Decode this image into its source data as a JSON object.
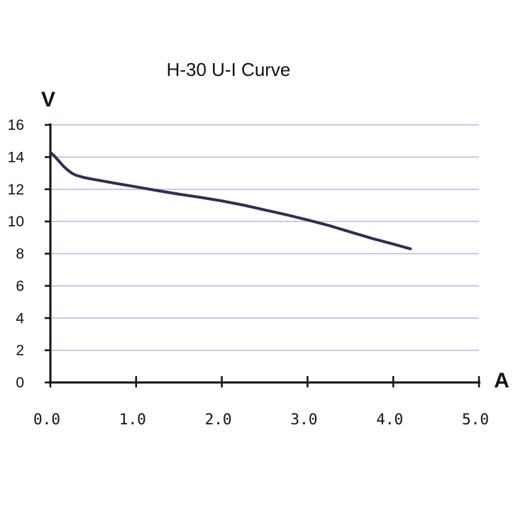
{
  "chart_data": {
    "type": "line",
    "title": "H-30 U-I Curve",
    "xlabel": "A",
    "ylabel": "V",
    "xlim": [
      0,
      5
    ],
    "ylim": [
      0,
      16
    ],
    "x_ticks": [
      "0.0",
      "1.0",
      "2.0",
      "3.0",
      "4.0",
      "5.0"
    ],
    "y_ticks": [
      "0",
      "2",
      "4",
      "6",
      "8",
      "10",
      "12",
      "14",
      "16"
    ],
    "grid": "horizontal",
    "series": [
      {
        "color": "#2e2f55",
        "x": [
          0.0,
          0.05,
          0.1,
          0.15,
          0.2,
          0.25,
          0.3,
          0.4,
          0.5,
          0.75,
          1.0,
          1.25,
          1.5,
          1.75,
          2.0,
          2.25,
          2.5,
          2.75,
          3.0,
          3.25,
          3.5,
          3.75,
          4.0,
          4.2
        ],
        "y": [
          14.3,
          14.05,
          13.75,
          13.45,
          13.2,
          13.0,
          12.87,
          12.72,
          12.62,
          12.38,
          12.15,
          11.92,
          11.7,
          11.5,
          11.28,
          11.02,
          10.72,
          10.42,
          10.1,
          9.75,
          9.35,
          8.95,
          8.6,
          8.3
        ]
      }
    ]
  },
  "colors": {
    "gridline": "#b0bce0",
    "axis": "#111111",
    "line": "#2e2f55"
  }
}
